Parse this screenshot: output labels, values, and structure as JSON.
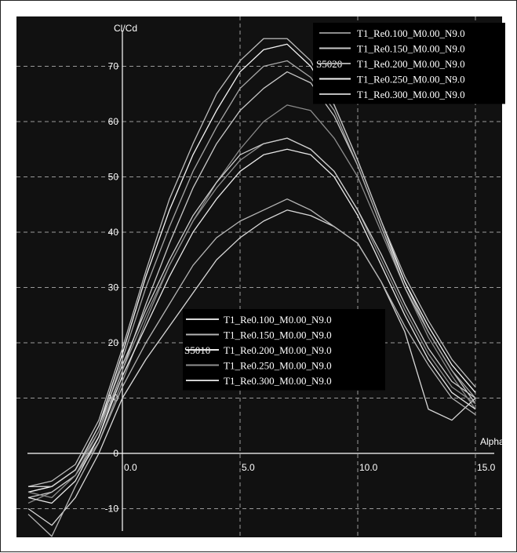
{
  "chart_data": {
    "type": "line",
    "title": "",
    "xlabel": "Alpha",
    "ylabel": "Cl/Cd",
    "xlim": [
      -4.2,
      16.0
    ],
    "ylim": [
      -16,
      77
    ],
    "grid": true,
    "x_ticks": [
      "0.0",
      "5.0",
      "10.0",
      "15.0"
    ],
    "x_tick_values": [
      0,
      5,
      10,
      15
    ],
    "y_ticks": [
      "-10",
      "0",
      "10",
      "20",
      "30",
      "40",
      "50",
      "60",
      "70"
    ],
    "y_tick_values": [
      -10,
      0,
      10,
      20,
      30,
      40,
      50,
      60,
      70
    ],
    "colors": {
      "background": "#111111",
      "grid": "#9a9a9a",
      "axis": "#ffffff",
      "text": "#ffffff"
    },
    "legends": [
      {
        "group": "S5020",
        "placement": "top-right",
        "entries": [
          "T1_Re0.100_M0.00_N9.0",
          "T1_Re0.150_M0.00_N9.0",
          "T1_Re0.200_M0.00_N9.0",
          "T1_Re0.250_M0.00_N9.0",
          "T1_Re0.300_M0.00_N9.0"
        ],
        "colors": [
          "#8c8c8c",
          "#c8c8c8",
          "#a8a8a8",
          "#f4f4f4",
          "#bdbdbd"
        ]
      },
      {
        "group": "S5010",
        "placement": "center",
        "entries": [
          "T1_Re0.100_M0.00_N9.0",
          "T1_Re0.150_M0.00_N9.0",
          "T1_Re0.200_M0.00_N9.0",
          "T1_Re0.250_M0.00_N9.0",
          "T1_Re0.300_M0.00_N9.0"
        ],
        "colors": [
          "#d8d8d8",
          "#b5b5b5",
          "#e8e8e8",
          "#8f8f8f",
          "#cfcfcf"
        ]
      }
    ],
    "series": [
      {
        "group": "S5020",
        "name": "T1_Re0.100_M0.00_N9.0",
        "color": "#8c8c8c",
        "x": [
          -4,
          -3,
          -2,
          -1,
          0,
          1,
          2,
          3,
          4,
          5,
          6,
          7,
          8,
          9,
          10,
          11,
          12,
          13,
          14,
          15
        ],
        "y": [
          -9,
          -7,
          -4,
          2,
          13,
          24,
          34,
          42,
          49,
          55,
          60,
          63,
          62,
          57,
          50,
          40,
          30,
          21,
          14,
          8
        ]
      },
      {
        "group": "S5020",
        "name": "T1_Re0.150_M0.00_N9.0",
        "color": "#c8c8c8",
        "x": [
          -4,
          -3,
          -2,
          -1,
          0,
          1,
          2,
          3,
          4,
          5,
          6,
          7,
          8,
          9,
          10,
          11,
          12,
          13,
          14,
          15
        ],
        "y": [
          -8,
          -7,
          -4,
          3,
          15,
          27,
          38,
          48,
          56,
          62,
          66,
          69,
          67,
          61,
          52,
          41,
          30,
          22,
          15,
          9
        ]
      },
      {
        "group": "S5020",
        "name": "T1_Re0.200_M0.00_N9.0",
        "color": "#a8a8a8",
        "x": [
          -4,
          -3,
          -2,
          -1,
          0,
          1,
          2,
          3,
          4,
          5,
          6,
          7,
          8,
          9,
          10,
          11,
          12,
          13,
          14,
          15
        ],
        "y": [
          -7,
          -6,
          -3,
          4,
          17,
          30,
          41,
          51,
          59,
          66,
          70,
          71,
          68,
          62,
          52,
          41,
          31,
          22,
          15,
          10
        ]
      },
      {
        "group": "S5020",
        "name": "T1_Re0.250_M0.00_N9.0",
        "color": "#f4f4f4",
        "x": [
          -4,
          -3,
          -2,
          -1,
          0,
          1,
          2,
          3,
          4,
          5,
          6,
          7,
          8,
          9,
          10,
          11,
          12,
          13,
          14,
          15
        ],
        "y": [
          -7,
          -6,
          -3,
          5,
          18,
          32,
          44,
          54,
          62,
          69,
          73,
          74,
          70,
          63,
          53,
          42,
          31,
          23,
          16,
          11
        ]
      },
      {
        "group": "S5020",
        "name": "T1_Re0.300_M0.00_N9.0",
        "color": "#bdbdbd",
        "x": [
          -4,
          -3,
          -2,
          -1,
          0,
          1,
          2,
          3,
          4,
          5,
          6,
          7,
          8,
          9,
          10,
          11,
          12,
          13,
          14,
          15
        ],
        "y": [
          -6,
          -5,
          -2,
          6,
          19,
          33,
          46,
          56,
          65,
          71,
          75,
          75,
          71,
          63,
          53,
          42,
          32,
          24,
          17,
          12
        ]
      },
      {
        "group": "S5010",
        "name": "T1_Re0.100_M0.00_N9.0",
        "color": "#d8d8d8",
        "x": [
          -4,
          -3,
          -2,
          -1,
          0,
          1,
          2,
          3,
          4,
          5,
          6,
          7,
          8,
          9,
          10,
          11,
          12,
          13,
          14,
          15
        ],
        "y": [
          -10,
          -13,
          -8,
          0,
          10,
          17,
          23,
          29,
          35,
          39,
          42,
          44,
          43,
          41,
          38,
          31,
          22,
          8,
          6,
          10
        ]
      },
      {
        "group": "S5010",
        "name": "T1_Re0.150_M0.00_N9.0",
        "color": "#b5b5b5",
        "x": [
          -4,
          -3,
          -2,
          -1,
          0,
          1,
          2,
          3,
          4,
          5,
          6,
          7,
          8,
          9,
          10,
          11,
          12,
          13,
          14,
          15
        ],
        "y": [
          -11,
          -15,
          -6,
          2,
          12,
          20,
          27,
          34,
          39,
          42,
          44,
          46,
          44,
          41,
          38,
          31,
          23,
          16,
          10,
          7
        ]
      },
      {
        "group": "S5010",
        "name": "T1_Re0.200_M0.00_N9.0",
        "color": "#e8e8e8",
        "x": [
          -4,
          -3,
          -2,
          -1,
          0,
          1,
          2,
          3,
          4,
          5,
          6,
          7,
          8,
          9,
          10,
          11,
          12,
          13,
          14,
          15
        ],
        "y": [
          -8,
          -9,
          -5,
          3,
          14,
          23,
          32,
          40,
          46,
          51,
          54,
          55,
          54,
          50,
          43,
          34,
          25,
          17,
          11,
          8
        ]
      },
      {
        "group": "S5010",
        "name": "T1_Re0.250_M0.00_N9.0",
        "color": "#8f8f8f",
        "x": [
          -4,
          -3,
          -2,
          -1,
          0,
          1,
          2,
          3,
          4,
          5,
          6,
          7,
          8,
          9,
          10,
          11,
          12,
          13,
          14,
          15
        ],
        "y": [
          -7,
          -8,
          -4,
          4,
          15,
          25,
          34,
          42,
          48,
          53,
          56,
          57,
          55,
          51,
          44,
          35,
          26,
          18,
          12,
          9
        ]
      },
      {
        "group": "S5010",
        "name": "T1_Re0.300_M0.00_N9.0",
        "color": "#cfcfcf",
        "x": [
          -4,
          -3,
          -2,
          -1,
          0,
          1,
          2,
          3,
          4,
          5,
          6,
          7,
          8,
          9,
          10,
          11,
          12,
          13,
          14,
          15
        ],
        "y": [
          -6,
          -6,
          -3,
          5,
          16,
          26,
          35,
          43,
          49,
          54,
          56,
          57,
          55,
          51,
          44,
          36,
          27,
          19,
          13,
          10
        ]
      }
    ]
  }
}
